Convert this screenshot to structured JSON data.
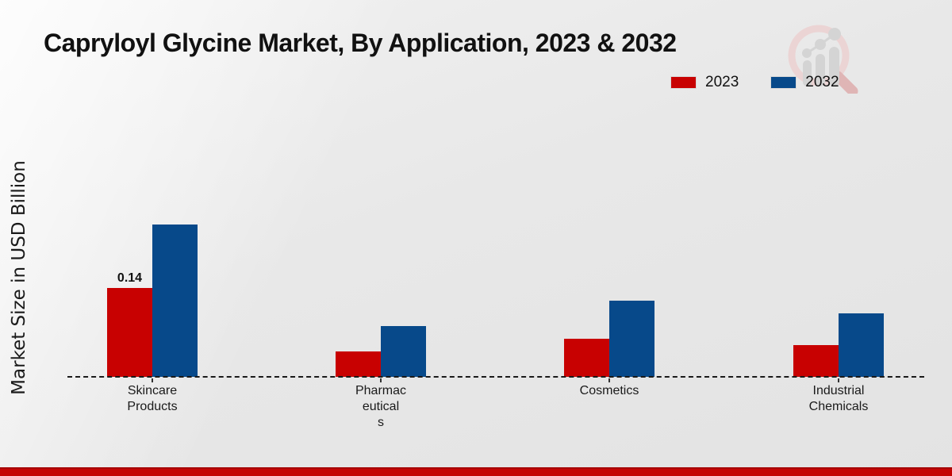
{
  "page": {
    "background_top": "#f1f1f1",
    "background_bottom": "#e3e3e3",
    "footer_bar_color": "#c50404"
  },
  "brand": {
    "logo_name": "magnifier-bar-chart-watermark",
    "logo_ring_color": "#ecd2d2",
    "logo_bars_color": "#d2d2d2"
  },
  "chart_data": {
    "type": "bar",
    "title": "Capryloyl Glycine Market, By Application, 2023 & 2032",
    "ylabel": "Market Size in USD Billion",
    "xlabel": "",
    "categories": [
      "Skincare Products",
      "Pharmaceuticals",
      "Cosmetics",
      "Industrial Chemicals"
    ],
    "category_label_lines": [
      [
        "Skincare",
        "Products"
      ],
      [
        "Pharmac",
        "eutical",
        "s"
      ],
      [
        "Cosmetics"
      ],
      [
        "Industrial",
        "Chemicals"
      ]
    ],
    "series": [
      {
        "name": "2023",
        "color": "#c80101",
        "values": [
          0.14,
          0.04,
          0.06,
          0.05
        ]
      },
      {
        "name": "2032",
        "color": "#07498a",
        "values": [
          0.24,
          0.08,
          0.12,
          0.1
        ]
      }
    ],
    "annotations": [
      {
        "series_index": 0,
        "category_index": 0,
        "text": "0.14"
      }
    ],
    "ylim": [
      0,
      0.25
    ],
    "y_ticks_visible": false,
    "grid": false,
    "baseline_style": "dashed",
    "legend_position": "top-right"
  }
}
